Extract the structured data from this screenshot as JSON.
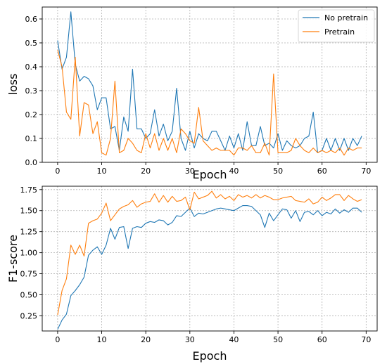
{
  "chart_data": [
    {
      "type": "line",
      "xlabel": "Epoch",
      "ylabel": "loss",
      "xlim": [
        -3.5,
        72.5
      ],
      "ylim": [
        0,
        0.65
      ],
      "xticks": [
        0,
        10,
        20,
        30,
        40,
        50,
        60,
        70
      ],
      "yticks": [
        0.0,
        0.1,
        0.2,
        0.3,
        0.4,
        0.5,
        0.6
      ],
      "ytick_labels": [
        "0.0",
        "0.1",
        "0.2",
        "0.3",
        "0.4",
        "0.5",
        "0.6"
      ],
      "grid": true,
      "legend": "top-right",
      "series": [
        {
          "name": "No pretrain",
          "color": "#1f77b4",
          "values": [
            0.51,
            0.39,
            0.44,
            0.63,
            0.41,
            0.34,
            0.36,
            0.35,
            0.32,
            0.22,
            0.27,
            0.27,
            0.14,
            0.15,
            0.05,
            0.19,
            0.13,
            0.39,
            0.14,
            0.14,
            0.1,
            0.12,
            0.22,
            0.11,
            0.16,
            0.09,
            0.13,
            0.31,
            0.1,
            0.05,
            0.13,
            0.06,
            0.12,
            0.1,
            0.09,
            0.13,
            0.13,
            0.09,
            0.05,
            0.11,
            0.06,
            0.12,
            0.05,
            0.17,
            0.07,
            0.07,
            0.15,
            0.07,
            0.08,
            0.06,
            0.12,
            0.05,
            0.09,
            0.07,
            0.06,
            0.07,
            0.1,
            0.11,
            0.21,
            0.04,
            0.05,
            0.1,
            0.05,
            0.1,
            0.05,
            0.1,
            0.05,
            0.1,
            0.07,
            0.11
          ]
        },
        {
          "name": "Pretrain",
          "color": "#ff7f0e",
          "values": [
            0.47,
            0.4,
            0.21,
            0.18,
            0.44,
            0.11,
            0.25,
            0.24,
            0.12,
            0.17,
            0.04,
            0.03,
            0.1,
            0.34,
            0.04,
            0.05,
            0.1,
            0.08,
            0.05,
            0.04,
            0.12,
            0.06,
            0.12,
            0.05,
            0.1,
            0.05,
            0.1,
            0.04,
            0.14,
            0.12,
            0.09,
            0.08,
            0.23,
            0.09,
            0.07,
            0.05,
            0.06,
            0.05,
            0.05,
            0.05,
            0.03,
            0.06,
            0.06,
            0.05,
            0.07,
            0.04,
            0.04,
            0.08,
            0.03,
            0.37,
            0.04,
            0.04,
            0.04,
            0.05,
            0.1,
            0.07,
            0.05,
            0.04,
            0.06,
            0.04,
            0.05,
            0.04,
            0.05,
            0.04,
            0.06,
            0.03,
            0.06,
            0.05,
            0.06,
            0.06
          ]
        }
      ]
    },
    {
      "type": "line",
      "xlabel": "Epoch",
      "ylabel": "F1-score",
      "xlim": [
        -3.5,
        72.5
      ],
      "ylim": [
        0.07,
        1.79
      ],
      "xticks": [
        0,
        10,
        20,
        30,
        40,
        50,
        60,
        70
      ],
      "yticks": [
        0.25,
        0.5,
        0.75,
        1.0,
        1.25,
        1.5,
        1.75
      ],
      "ytick_labels": [
        "0.25",
        "0.50",
        "0.75",
        "1.00",
        "1.25",
        "1.50",
        "1.75"
      ],
      "grid": true,
      "legend": "none",
      "series": [
        {
          "color": "#1f77b4",
          "values": [
            0.09,
            0.2,
            0.27,
            0.49,
            0.55,
            0.62,
            0.71,
            0.97,
            1.03,
            1.07,
            0.98,
            1.09,
            1.29,
            1.16,
            1.3,
            1.31,
            1.05,
            1.29,
            1.31,
            1.3,
            1.35,
            1.37,
            1.36,
            1.39,
            1.38,
            1.33,
            1.36,
            1.44,
            1.43,
            1.48,
            1.53,
            1.43,
            1.47,
            1.46,
            1.48,
            1.5,
            1.52,
            1.53,
            1.52,
            1.51,
            1.5,
            1.53,
            1.56,
            1.56,
            1.55,
            1.5,
            1.45,
            1.3,
            1.47,
            1.38,
            1.45,
            1.52,
            1.51,
            1.41,
            1.5,
            1.37,
            1.48,
            1.49,
            1.45,
            1.5,
            1.44,
            1.48,
            1.46,
            1.52,
            1.47,
            1.51,
            1.48,
            1.53,
            1.53,
            1.48
          ]
        },
        {
          "color": "#ff7f0e",
          "values": [
            0.26,
            0.55,
            0.69,
            1.09,
            0.98,
            1.09,
            0.96,
            1.35,
            1.38,
            1.4,
            1.47,
            1.59,
            1.38,
            1.45,
            1.52,
            1.55,
            1.57,
            1.62,
            1.54,
            1.58,
            1.6,
            1.61,
            1.7,
            1.6,
            1.68,
            1.6,
            1.67,
            1.61,
            1.62,
            1.66,
            1.51,
            1.72,
            1.64,
            1.66,
            1.68,
            1.73,
            1.65,
            1.69,
            1.64,
            1.67,
            1.62,
            1.69,
            1.66,
            1.68,
            1.65,
            1.69,
            1.65,
            1.68,
            1.66,
            1.63,
            1.63,
            1.65,
            1.66,
            1.67,
            1.62,
            1.61,
            1.6,
            1.64,
            1.58,
            1.6,
            1.66,
            1.62,
            1.65,
            1.69,
            1.69,
            1.62,
            1.68,
            1.64,
            1.61,
            1.63
          ]
        }
      ]
    }
  ]
}
